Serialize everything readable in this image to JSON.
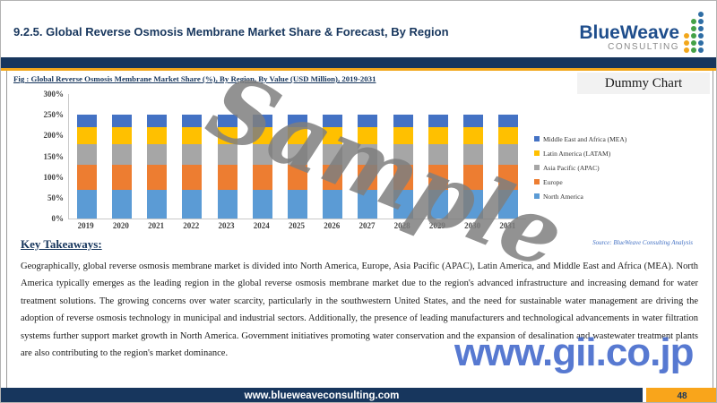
{
  "header": {
    "title": "9.2.5. Global Reverse Osmosis Membrane  Market Share & Forecast, By Region",
    "logo_name": "BlueWeave",
    "logo_subtitle": "CONSULTING"
  },
  "figure": {
    "caption": "Fig :  Global Reverse Osmosis Membrane  Market Share (%), By Region,  By Value (USD Million), 2019-2031",
    "dummy_label": "Dummy Chart",
    "source": "Source: BlueWeave Consulting Analysis"
  },
  "chart_data": {
    "type": "bar",
    "stacked": true,
    "categories": [
      "2019",
      "2020",
      "2021",
      "2022",
      "2023",
      "2024",
      "2025",
      "2026",
      "2027",
      "2028",
      "2029",
      "2030",
      "2031"
    ],
    "series": [
      {
        "name": "North America",
        "color": "#5B9BD5",
        "values": [
          70,
          70,
          70,
          70,
          70,
          70,
          70,
          70,
          70,
          70,
          70,
          70,
          70
        ]
      },
      {
        "name": "Europe",
        "color": "#ED7D31",
        "values": [
          60,
          60,
          60,
          60,
          60,
          60,
          60,
          60,
          60,
          60,
          60,
          60,
          60
        ]
      },
      {
        "name": "Asia Pacific (APAC)",
        "color": "#A6A6A6",
        "values": [
          50,
          50,
          50,
          50,
          50,
          50,
          50,
          50,
          50,
          50,
          50,
          50,
          50
        ]
      },
      {
        "name": "Latin America (LATAM)",
        "color": "#FFC000",
        "values": [
          40,
          40,
          40,
          40,
          40,
          40,
          40,
          40,
          40,
          40,
          40,
          40,
          40
        ]
      },
      {
        "name": "Middle East and Africa (MEA)",
        "color": "#4472C4",
        "values": [
          30,
          30,
          30,
          30,
          30,
          30,
          30,
          30,
          30,
          30,
          30,
          30,
          30
        ]
      }
    ],
    "legend_order": [
      "Middle East and Africa (MEA)",
      "Latin America (LATAM)",
      "Asia Pacific (APAC)",
      "Europe",
      "North America"
    ],
    "legend_position": "right",
    "title": "Global Reverse Osmosis Membrane Market Share (%), By Region, By Value (USD Million), 2019-2031",
    "xlabel": "",
    "ylabel": "",
    "ylim": [
      0,
      300
    ],
    "ytick_step": 50,
    "ytick_suffix": "%",
    "grid": false
  },
  "key_takeaways": {
    "heading": "Key Takeaways:",
    "paragraph": "Geographically, global reverse osmosis membrane market is divided into North America, Europe, Asia Pacific (APAC), Latin America, and Middle East and Africa (MEA). North America typically emerges as the leading region in the global reverse osmosis membrane market due to the region's advanced infrastructure and increasing demand for water treatment solutions. The growing concerns over water scarcity, particularly in the southwestern United States, and the need for sustainable water management are driving the adoption of reverse osmosis technology in municipal and industrial sectors. Additionally, the presence of leading manufacturers and technological advancements in water filtration systems further support market growth in North America. Government initiatives promoting water conservation and the expansion of desalination and wastewater treatment plants are also contributing to the region's market dominance."
  },
  "watermarks": {
    "sample": "Sample",
    "site": "www.gii.co.jp"
  },
  "footer": {
    "url": "www.blueweaveconsulting.com",
    "page_number": "48"
  },
  "colors": {
    "navy": "#17365D",
    "gold": "#F2A71B",
    "page_box_orange": "#F9A51B",
    "source_blue": "#4472C4",
    "gii_blue": "#3A62C9",
    "sample_gray": "#7F7F7F",
    "logo_blue": "#1F4E8C",
    "logo_dot_orange": "#F2A71B",
    "logo_dot_green": "#44A147",
    "logo_dot_blue": "#2E6DA4"
  }
}
